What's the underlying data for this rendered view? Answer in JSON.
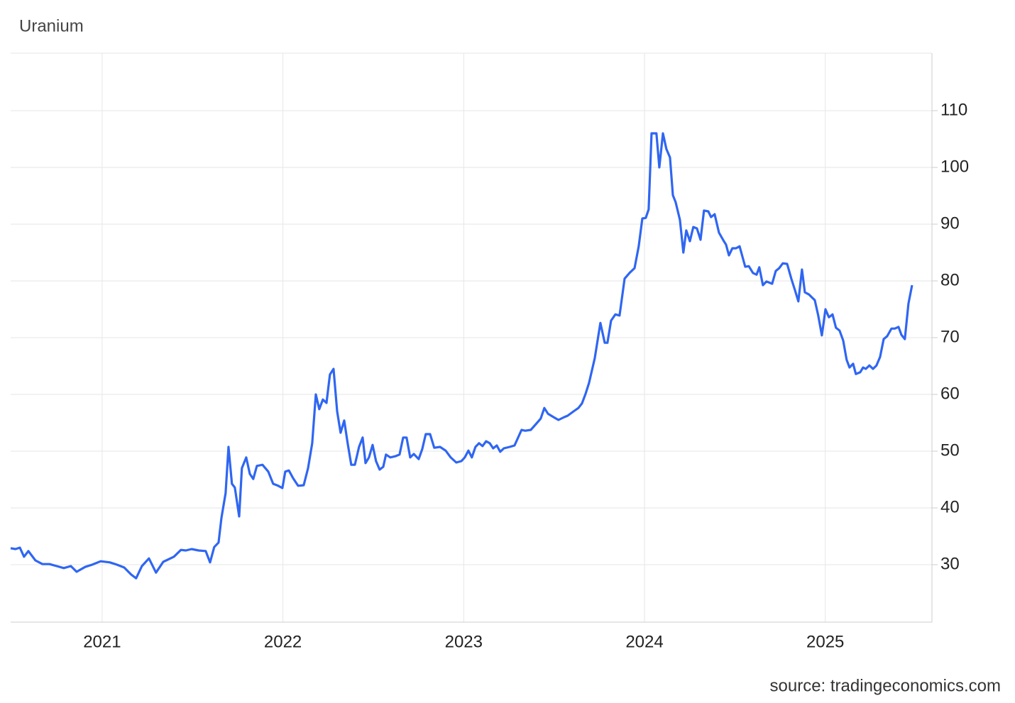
{
  "chart_data": {
    "type": "line",
    "title": "Uranium",
    "source": "source: tradingeconomics.com",
    "x": [
      2020.494,
      2020.521,
      2020.545,
      2020.568,
      2020.592,
      2020.631,
      2020.67,
      2020.709,
      2020.749,
      2020.788,
      2020.827,
      2020.859,
      2020.906,
      2020.945,
      2020.992,
      2021.043,
      2021.082,
      2021.122,
      2021.161,
      2021.188,
      2021.22,
      2021.259,
      2021.298,
      2021.338,
      2021.397,
      2021.436,
      2021.463,
      2021.495,
      2021.534,
      2021.573,
      2021.597,
      2021.62,
      2021.644,
      2021.66,
      2021.683,
      2021.699,
      2021.718,
      2021.734,
      2021.758,
      2021.773,
      2021.797,
      2021.817,
      2021.836,
      2021.856,
      2021.887,
      2021.919,
      2021.946,
      2021.974,
      2021.997,
      2022.013,
      2022.033,
      2022.056,
      2022.084,
      2022.115,
      2022.139,
      2022.162,
      2022.182,
      2022.201,
      2022.221,
      2022.241,
      2022.26,
      2022.28,
      2022.3,
      2022.319,
      2022.339,
      2022.358,
      2022.378,
      2022.398,
      2022.421,
      2022.441,
      2022.457,
      2022.476,
      2022.496,
      2022.515,
      2022.535,
      2022.555,
      2022.57,
      2022.594,
      2022.621,
      2022.645,
      2022.665,
      2022.684,
      2022.704,
      2022.724,
      2022.751,
      2022.771,
      2022.79,
      2022.814,
      2022.837,
      2022.869,
      2022.9,
      2022.928,
      2022.959,
      2022.987,
      2023.006,
      2023.026,
      2023.045,
      2023.065,
      2023.085,
      2023.104,
      2023.124,
      2023.144,
      2023.163,
      2023.183,
      2023.202,
      2023.222,
      2023.254,
      2023.281,
      2023.32,
      2023.34,
      2023.371,
      2023.399,
      2023.426,
      2023.446,
      2023.466,
      2023.497,
      2023.524,
      2023.556,
      2023.575,
      2023.607,
      2023.634,
      2023.654,
      2023.674,
      2023.693,
      2023.725,
      2023.756,
      2023.78,
      2023.795,
      2023.815,
      2023.839,
      2023.862,
      2023.89,
      2023.917,
      2023.945,
      2023.968,
      2023.988,
      2024.007,
      2024.023,
      2024.039,
      2024.066,
      2024.082,
      2024.102,
      2024.121,
      2024.141,
      2024.157,
      2024.172,
      2024.196,
      2024.215,
      2024.231,
      2024.251,
      2024.27,
      2024.29,
      2024.31,
      2024.329,
      2024.353,
      2024.368,
      2024.388,
      2024.412,
      2024.439,
      2024.451,
      2024.467,
      2024.486,
      2024.506,
      2024.526,
      2024.557,
      2024.577,
      2024.6,
      2024.62,
      2024.635,
      2024.655,
      2024.675,
      2024.706,
      2024.726,
      2024.745,
      2024.765,
      2024.789,
      2024.812,
      2024.832,
      2024.851,
      2024.871,
      2024.887,
      2024.91,
      2024.942,
      2024.961,
      2024.981,
      2025.001,
      2025.02,
      2025.04,
      2025.059,
      2025.079,
      2025.099,
      2025.118,
      2025.134,
      2025.154,
      2025.169,
      2025.193,
      2025.209,
      2025.224,
      2025.244,
      2025.264,
      2025.283,
      2025.303,
      2025.323,
      2025.342,
      2025.366,
      2025.385,
      2025.405,
      2025.421,
      2025.44,
      2025.46,
      2025.48
    ],
    "series": [
      {
        "name": "Uranium",
        "color": "#2f66f2",
        "values": [
          32.9,
          32.75,
          33,
          31.4,
          32.4,
          30.75,
          30.1,
          30.1,
          29.75,
          29.4,
          29.75,
          28.75,
          29.6,
          30,
          30.6,
          30.4,
          30,
          29.5,
          28.25,
          27.6,
          29.75,
          31.1,
          28.6,
          30.5,
          31.4,
          32.6,
          32.5,
          32.75,
          32.5,
          32.4,
          30.4,
          33.1,
          33.9,
          38.25,
          42.6,
          50.75,
          44.25,
          43.6,
          38.5,
          47,
          48.9,
          46,
          45.1,
          47.4,
          47.6,
          46.4,
          44.25,
          43.9,
          43.5,
          46.4,
          46.6,
          45.25,
          43.9,
          44,
          47,
          51.4,
          60,
          57.4,
          59.1,
          58.5,
          63.5,
          64.5,
          57,
          53.25,
          55.4,
          51.4,
          47.6,
          47.6,
          50.75,
          52.4,
          47.9,
          48.9,
          51.1,
          48.25,
          46.75,
          47.25,
          49.4,
          48.9,
          49.1,
          49.4,
          52.4,
          52.4,
          48.9,
          49.5,
          48.6,
          50.4,
          53,
          53,
          50.6,
          50.75,
          50.1,
          48.9,
          48,
          48.25,
          48.9,
          50.1,
          48.9,
          50.75,
          51.4,
          50.9,
          51.75,
          51.4,
          50.5,
          51,
          49.9,
          50.5,
          50.75,
          51,
          53.75,
          53.6,
          53.75,
          54.75,
          55.75,
          57.6,
          56.6,
          56,
          55.5,
          56,
          56.25,
          57,
          57.6,
          58.4,
          60.1,
          62,
          66.4,
          72.6,
          69.1,
          69.1,
          73,
          74.1,
          73.9,
          80.4,
          81.4,
          82.25,
          86.1,
          91,
          91.1,
          92.6,
          106,
          106,
          100,
          106,
          103.25,
          101.75,
          95.1,
          93.9,
          90.75,
          85,
          88.9,
          87,
          89.5,
          89.25,
          87.25,
          92.4,
          92.25,
          91.25,
          91.75,
          88.5,
          87,
          86.4,
          84.5,
          85.75,
          85.75,
          86.1,
          82.5,
          82.6,
          81.4,
          81.1,
          82.4,
          79.25,
          79.9,
          79.5,
          81.75,
          82.25,
          83.1,
          83,
          80.4,
          78.4,
          76.4,
          82,
          78,
          77.6,
          76.6,
          73.9,
          70.4,
          75,
          73.6,
          74.1,
          71.75,
          71.25,
          69.5,
          66.1,
          64.75,
          65.4,
          63.6,
          63.9,
          64.75,
          64.5,
          65.1,
          64.5,
          65.1,
          66.6,
          69.75,
          70.25,
          71.6,
          71.6,
          71.9,
          70.5,
          69.75,
          76,
          79.25
        ]
      }
    ],
    "xlim": [
      2020.494,
      2025.59
    ],
    "xticks": [
      2021,
      2022,
      2023,
      2024,
      2025
    ],
    "ylim": [
      19.875,
      120.125
    ],
    "yticks": [
      30,
      40,
      50,
      60,
      70,
      80,
      90,
      100,
      110
    ],
    "grid": true
  }
}
